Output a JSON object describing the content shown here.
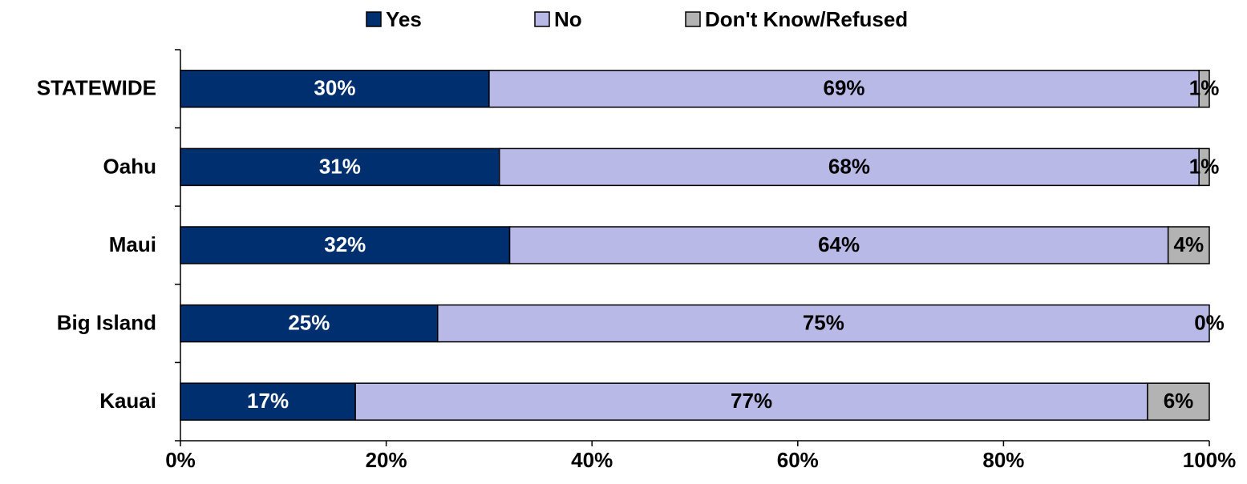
{
  "chart_data": {
    "type": "bar",
    "orientation": "horizontal",
    "stacked": true,
    "categories": [
      "STATEWIDE",
      "Oahu",
      "Maui",
      "Big Island",
      "Kauai"
    ],
    "series": [
      {
        "name": "Yes",
        "values": [
          30,
          31,
          32,
          25,
          17
        ],
        "color": "#002F70",
        "label_color": "#ffffff"
      },
      {
        "name": "No",
        "values": [
          69,
          68,
          64,
          75,
          77
        ],
        "color": "#B9B9E8",
        "label_color": "#000000"
      },
      {
        "name": "Don't Know/Refused",
        "values": [
          1,
          1,
          4,
          0,
          6
        ],
        "color": "#B3B3B3",
        "label_color": "#000000"
      }
    ],
    "value_suffix": "%",
    "xlim": [
      0,
      100
    ],
    "xticks": [
      0,
      20,
      40,
      60,
      80,
      100
    ],
    "xtick_labels": [
      "0%",
      "20%",
      "40%",
      "60%",
      "80%",
      "100%"
    ],
    "title": "",
    "xlabel": "",
    "ylabel": "",
    "legend_position": "top",
    "grid": false
  }
}
